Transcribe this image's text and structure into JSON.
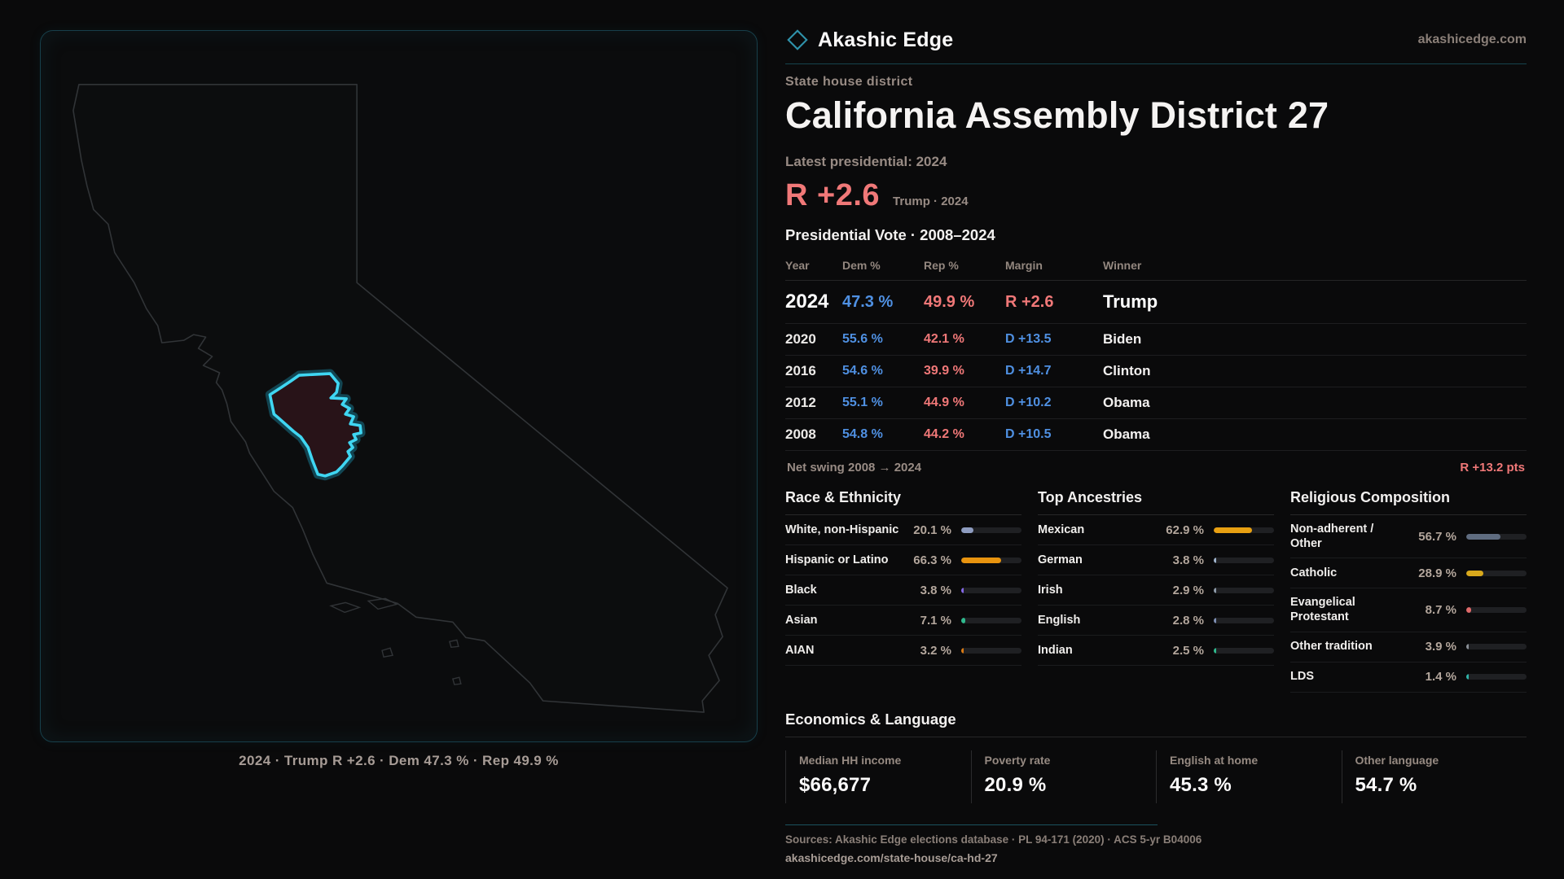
{
  "brand": {
    "name": "Akashic Edge",
    "site": "akashicedge.com"
  },
  "page": {
    "kicker": "State house district",
    "title": "California Assembly District 27",
    "latest_label": "Latest presidential: 2024",
    "headline_margin": "R +2.6",
    "headline_context": "Trump · 2024"
  },
  "map": {
    "caption": "2024 · Trump R +2.6 · Dem 47.3 % · Rep 49.9 %",
    "state_outline_color": "#313437",
    "district_fill_color": "#281318",
    "district_glow_color": "#1a8aa6",
    "district_stroke_color": "#3fd6f2"
  },
  "colors": {
    "dem": "#4f90e2",
    "rep": "#f07878"
  },
  "table": {
    "heading": "Presidential Vote · 2008–2024",
    "columns": [
      "Year",
      "Dem %",
      "Rep %",
      "Margin",
      "Winner"
    ],
    "rows": [
      {
        "year": "2024",
        "dem": "47.3 %",
        "rep": "49.9 %",
        "margin": "R +2.6",
        "winner": "Trump",
        "latest": true
      },
      {
        "year": "2020",
        "dem": "55.6 %",
        "rep": "42.1 %",
        "margin": "D +13.5",
        "winner": "Biden"
      },
      {
        "year": "2016",
        "dem": "54.6 %",
        "rep": "39.9 %",
        "margin": "D +14.7",
        "winner": "Clinton"
      },
      {
        "year": "2012",
        "dem": "55.1 %",
        "rep": "44.9 %",
        "margin": "D +10.2",
        "winner": "Obama"
      },
      {
        "year": "2008",
        "dem": "54.8 %",
        "rep": "44.2 %",
        "margin": "D +10.5",
        "winner": "Obama"
      }
    ],
    "net_swing_label": "Net swing 2008 → 2024",
    "net_swing_value": "R +13.2 pts"
  },
  "demographics": {
    "sections": [
      {
        "title": "Race & Ethnicity",
        "rows": [
          {
            "label": "White, non-Hispanic",
            "value": "20.1 %",
            "pct": 20.1,
            "color": "#8e9cc0"
          },
          {
            "label": "Hispanic or Latino",
            "value": "66.3 %",
            "pct": 66.3,
            "color": "#e8940f"
          },
          {
            "label": "Black",
            "value": "3.8 %",
            "pct": 3.8,
            "color": "#8468e6"
          },
          {
            "label": "Asian",
            "value": "7.1 %",
            "pct": 7.1,
            "color": "#2fb98d"
          },
          {
            "label": "AIAN",
            "value": "3.2 %",
            "pct": 3.2,
            "color": "#d97a14"
          }
        ]
      },
      {
        "title": "Top Ancestries",
        "rows": [
          {
            "label": "Mexican",
            "value": "62.9 %",
            "pct": 62.9,
            "color": "#e8a012"
          },
          {
            "label": "German",
            "value": "3.8 %",
            "pct": 3.8,
            "color": "#9fb3cc"
          },
          {
            "label": "Irish",
            "value": "2.9 %",
            "pct": 2.9,
            "color": "#8d9aa8"
          },
          {
            "label": "English",
            "value": "2.8 %",
            "pct": 2.8,
            "color": "#7e8fb3"
          },
          {
            "label": "Indian",
            "value": "2.5 %",
            "pct": 2.5,
            "color": "#2fb98d"
          }
        ]
      },
      {
        "title": "Religious Composition",
        "rows": [
          {
            "label": "Non-adherent / Other",
            "value": "56.7 %",
            "pct": 56.7,
            "color": "#5f6c80"
          },
          {
            "label": "Catholic",
            "value": "28.9 %",
            "pct": 28.9,
            "color": "#d9a91c"
          },
          {
            "label": "Evangelical Protestant",
            "value": "8.7 %",
            "pct": 8.7,
            "color": "#e06a6a"
          },
          {
            "label": "Other tradition",
            "value": "3.9 %",
            "pct": 3.9,
            "color": "#8a8f96"
          },
          {
            "label": "LDS",
            "value": "1.4 %",
            "pct": 1.4,
            "color": "#2fb3a8"
          }
        ]
      }
    ]
  },
  "economics": {
    "title": "Economics & Language",
    "stats": [
      {
        "label": "Median HH income",
        "value": "$66,677"
      },
      {
        "label": "Poverty rate",
        "value": "20.9 %"
      },
      {
        "label": "English at home",
        "value": "45.3 %"
      },
      {
        "label": "Other language",
        "value": "54.7 %"
      }
    ]
  },
  "footer": {
    "sources": "Sources: Akashic Edge elections database · PL 94-171 (2020) · ACS 5-yr B04006",
    "permalink": "akashicedge.com/state-house/ca-hd-27"
  }
}
